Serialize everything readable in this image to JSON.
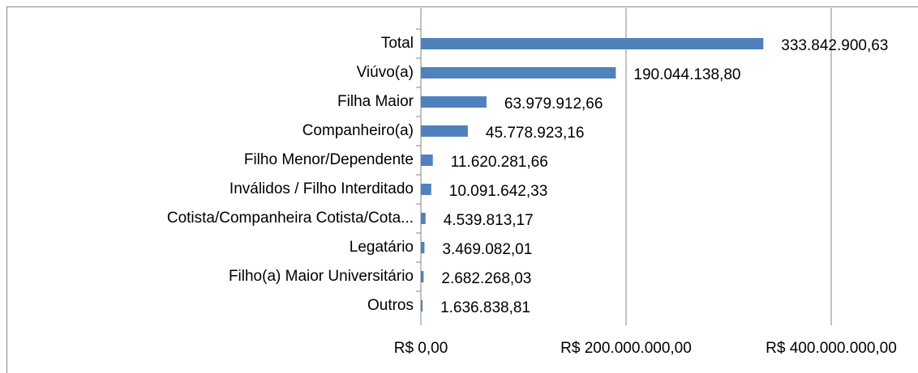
{
  "chart_data": {
    "type": "bar",
    "orientation": "horizontal",
    "categories": [
      "Total",
      "Viúvo(a)",
      "Filha Maior",
      "Companheiro(a)",
      "Filho Menor/Dependente",
      "Inválidos / Filho Interditado",
      "Cotista/Companheira Cotista/Cota...",
      "Legatário",
      "Filho(a) Maior Universitário",
      "Outros"
    ],
    "values": [
      333842900.63,
      190044138.8,
      63979912.66,
      45778923.16,
      11620281.66,
      10091642.33,
      4539813.17,
      3469082.01,
      2682268.03,
      1636838.81
    ],
    "value_labels": [
      "333.842.900,63",
      "190.044.138,80",
      "63.979.912,66",
      "45.778.923,16",
      "11.620.281,66",
      "10.091.642,33",
      "4.539.813,17",
      "3.469.082,01",
      "2.682.268,03",
      "1.636.838,81"
    ],
    "color": "#4f81bd",
    "xlim": [
      0,
      400000000
    ],
    "xticks": [
      {
        "value": 0,
        "label": "R$ 0,00"
      },
      {
        "value": 200000000,
        "label": "R$ 200.000.000,00"
      },
      {
        "value": 400000000,
        "label": "R$ 400.000.000,00"
      }
    ],
    "grid": true
  }
}
